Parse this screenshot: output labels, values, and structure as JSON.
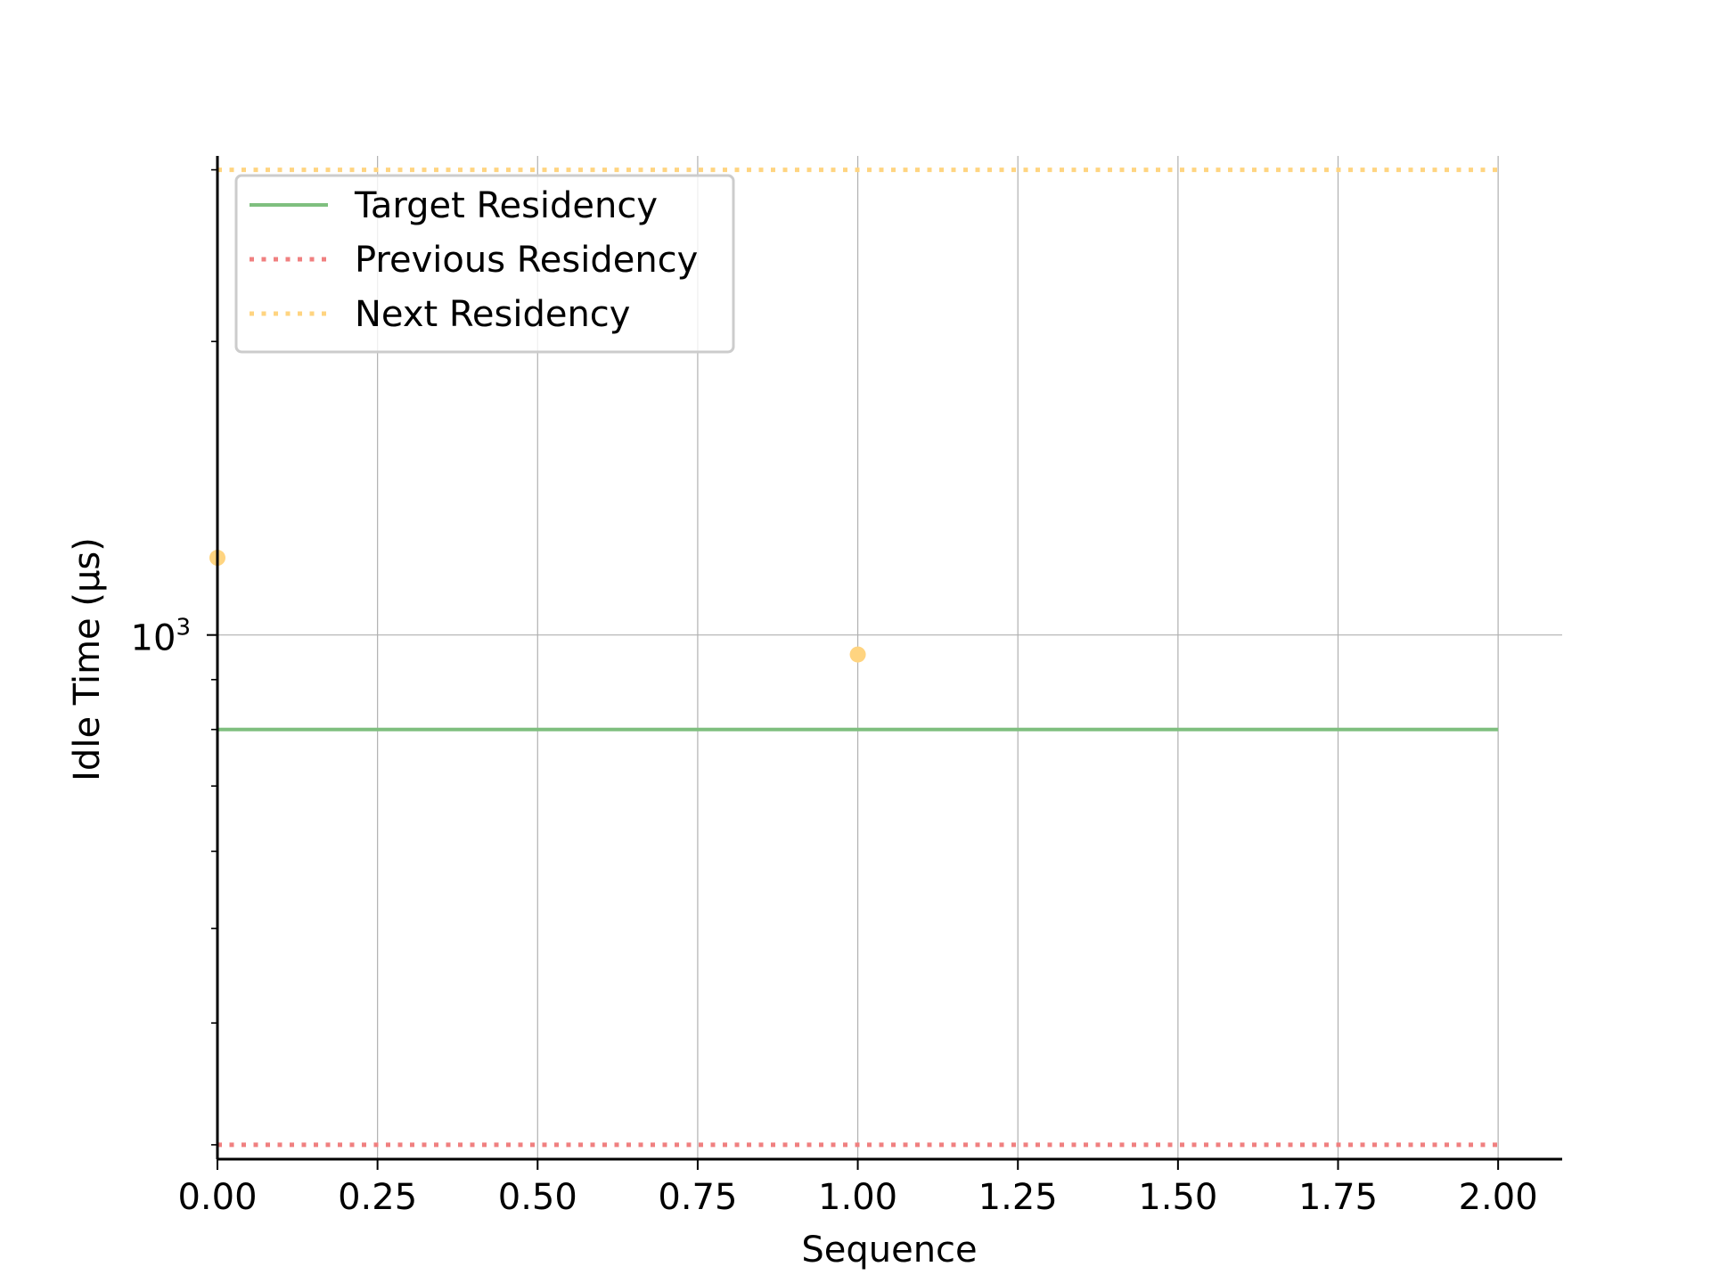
{
  "chart_data": {
    "type": "line",
    "xlabel": "Sequence",
    "ylabel": "Idle Time (µs)",
    "xlim": [
      0,
      2.1
    ],
    "xticks": [
      "0.00",
      "0.25",
      "0.50",
      "0.75",
      "1.00",
      "1.25",
      "1.50",
      "1.75",
      "2.00"
    ],
    "y_scale": "log",
    "ylim": [
      290,
      3100
    ],
    "y_major_tick": {
      "base": "10",
      "exponent": "3"
    },
    "y_minor_ticks": [
      300,
      400,
      500,
      600,
      700,
      800,
      900,
      2000,
      3000
    ],
    "grid": true,
    "legend_position": "upper-left",
    "series": [
      {
        "name": "Target Residency",
        "style": "solid",
        "color": "#7fbf7f",
        "x": [
          0,
          2
        ],
        "y": [
          800,
          800
        ]
      },
      {
        "name": "Previous Residency",
        "style": "dotted",
        "color": "#f08080",
        "x": [
          0,
          2
        ],
        "y": [
          300,
          300
        ]
      },
      {
        "name": "Next Residency",
        "style": "dotted",
        "color": "#ffd480",
        "x": [
          0,
          2
        ],
        "y": [
          3000,
          3000
        ]
      }
    ],
    "points": {
      "color": "#ffd480",
      "x": [
        0,
        1
      ],
      "y": [
        1200,
        955
      ]
    }
  }
}
